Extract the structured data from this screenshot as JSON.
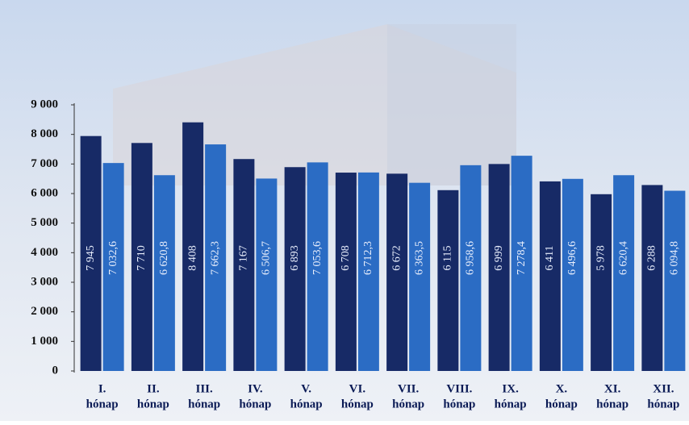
{
  "chart_data": {
    "type": "bar",
    "categories": [
      [
        "I.",
        "hónap"
      ],
      [
        "II.",
        "hónap"
      ],
      [
        "III.",
        "hónap"
      ],
      [
        "IV.",
        "hónap"
      ],
      [
        "V.",
        "hónap"
      ],
      [
        "VI.",
        "hónap"
      ],
      [
        "VII.",
        "hónap"
      ],
      [
        "VIII.",
        "hónap"
      ],
      [
        "IX.",
        "hónap"
      ],
      [
        "X.",
        "hónap"
      ],
      [
        "XI.",
        "hónap"
      ],
      [
        "XII.",
        "hónap"
      ]
    ],
    "series": [
      {
        "color": "#172a66",
        "values": [
          7945,
          7710,
          8408,
          7167,
          6893,
          6708,
          6672,
          6115,
          6999,
          6411,
          5978,
          6288
        ],
        "value_labels": [
          "7 945",
          "7 710",
          "8 408",
          "7 167",
          "6 893",
          "6 708",
          "6 672",
          "6 115",
          "6 999",
          "6 411",
          "5 978",
          "6 288"
        ]
      },
      {
        "color": "#2b6cc4",
        "values": [
          7032.6,
          6620.8,
          7662.3,
          6506.7,
          7053.6,
          6712.3,
          6363.5,
          6958.6,
          7278.4,
          6496.6,
          6620.4,
          6094.8
        ],
        "value_labels": [
          "7 032,6",
          "6 620,8",
          "7 662,3",
          "6 506,7",
          "7 053,6",
          "6 712,3",
          "6 363,5",
          "6 958,6",
          "7 278,4",
          "6 496,6",
          "6 620,4",
          "6 094,8"
        ]
      }
    ],
    "ylim": [
      0,
      9000
    ],
    "yticks": [
      0,
      {
        "value": 1000,
        "label": "1 000"
      },
      {
        "value": 2000,
        "label": "2 000"
      },
      {
        "value": 3000,
        "label": "3 000"
      },
      {
        "value": 4000,
        "label": "4 000"
      },
      {
        "value": 5000,
        "label": "5 000"
      },
      {
        "value": 6000,
        "label": "6 000"
      },
      {
        "value": 7000,
        "label": "7 000"
      },
      {
        "value": 8000,
        "label": "8 000"
      },
      {
        "value": 9000,
        "label": "9 000"
      }
    ]
  }
}
